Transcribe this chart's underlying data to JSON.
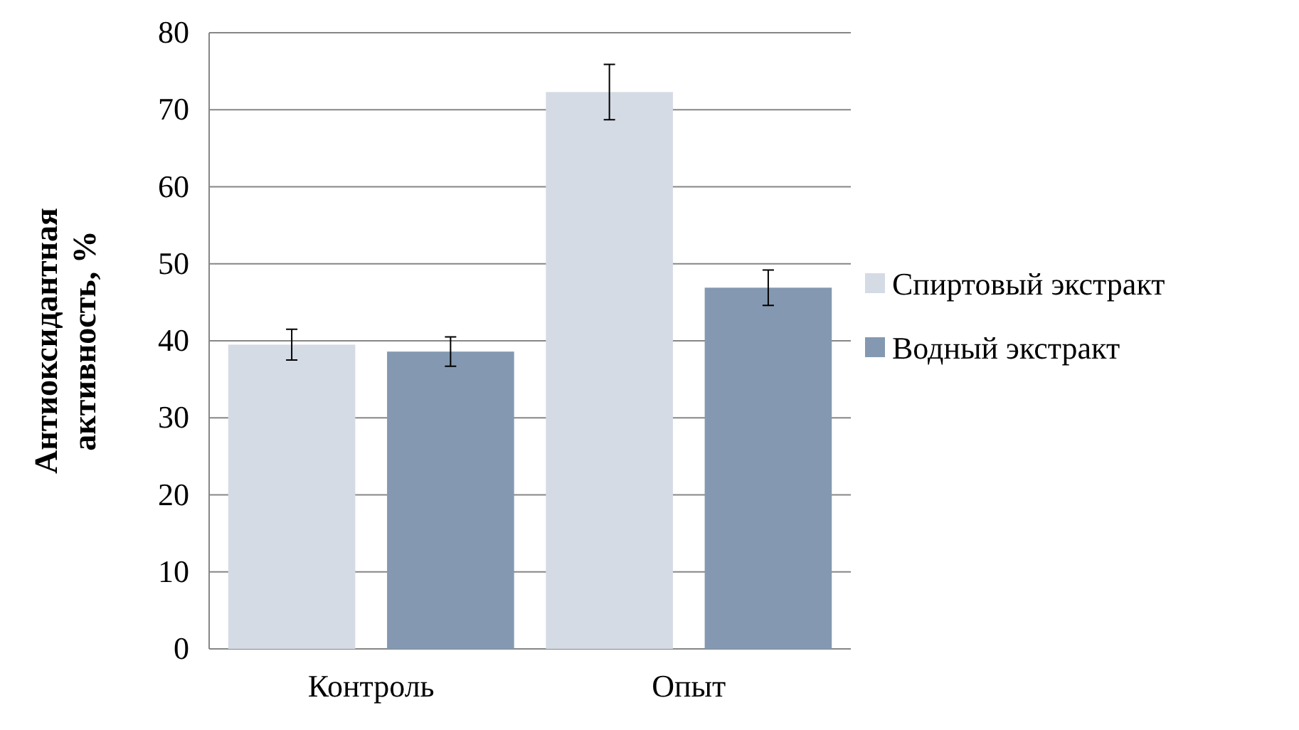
{
  "chart_data": {
    "type": "bar",
    "ylabel": "Антиоксидантная активность, %",
    "categories": [
      "Контроль",
      "Опыт"
    ],
    "series": [
      {
        "name": "Спиртовый экстракт",
        "color": "#d5dbe5",
        "values": [
          39.5,
          72.3
        ],
        "errors": [
          2,
          3.6
        ]
      },
      {
        "name": "Водный экстракт",
        "color": "#8499b1",
        "values": [
          38.6,
          46.9
        ],
        "errors": [
          1.9,
          2.3
        ]
      }
    ],
    "ylim": [
      0,
      80
    ],
    "yticks": [
      0,
      10,
      20,
      30,
      40,
      50,
      60,
      70,
      80
    ],
    "grid": "y",
    "legend": "right"
  }
}
